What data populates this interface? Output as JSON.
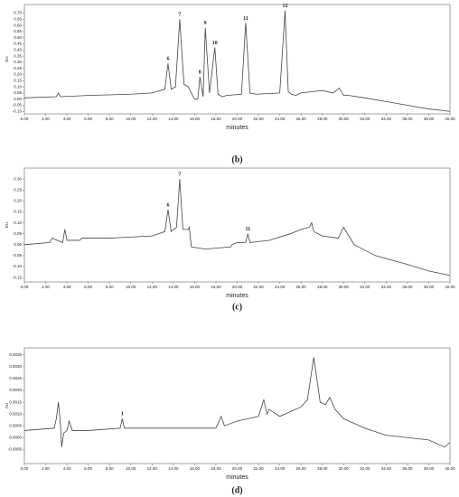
{
  "chart_data": [
    {
      "type": "line",
      "caption": "(b)",
      "xlabel": "minutes",
      "ylabel": "EU",
      "color": "#444444",
      "x": [
        0,
        3,
        3.2,
        3.4,
        6,
        10,
        12,
        13.2,
        13.5,
        13.8,
        14.2,
        14.6,
        15.0,
        15.4,
        15.8,
        16.0,
        16.3,
        16.5,
        16.8,
        17.0,
        17.4,
        17.9,
        18.2,
        18.6,
        19,
        20.4,
        20.8,
        21.2,
        21.8,
        24,
        24.5,
        24.8,
        25.1,
        25.5,
        26,
        27,
        28,
        29,
        29.6,
        30,
        30.5,
        32,
        34,
        36,
        38,
        40
      ],
      "values": [
        0.01,
        0.02,
        0.05,
        0.02,
        0.03,
        0.04,
        0.05,
        0.08,
        0.29,
        0.08,
        0.1,
        0.65,
        0.12,
        0.1,
        0.03,
        0.0,
        0.0,
        0.18,
        0.02,
        0.58,
        0.05,
        0.42,
        0.04,
        0.02,
        0.03,
        0.04,
        0.62,
        0.05,
        0.04,
        0.05,
        0.72,
        0.06,
        0.04,
        0.03,
        0.05,
        0.06,
        0.07,
        0.05,
        0.09,
        0.03,
        0.03,
        0.01,
        -0.02,
        -0.05,
        -0.08,
        -0.1
      ],
      "annotations": [
        {
          "text": "6",
          "x": 13.5,
          "y": 0.29
        },
        {
          "text": "7",
          "x": 14.6,
          "y": 0.65
        },
        {
          "text": "8",
          "x": 16.5,
          "y": 0.18
        },
        {
          "text": "9",
          "x": 17.0,
          "y": 0.58
        },
        {
          "text": "10",
          "x": 17.9,
          "y": 0.42
        },
        {
          "text": "11",
          "x": 20.8,
          "y": 0.62
        },
        {
          "text": "12",
          "x": 24.5,
          "y": 0.72
        }
      ],
      "xlim": [
        0,
        40
      ],
      "xticks": [
        {
          "value": 0,
          "label": "0.00"
        },
        {
          "value": 2,
          "label": "2.00"
        },
        {
          "value": 4,
          "label": "4.00"
        },
        {
          "value": 6,
          "label": "6.00"
        },
        {
          "value": 8,
          "label": "8.00"
        },
        {
          "value": 10,
          "label": "10.00"
        },
        {
          "value": 12,
          "label": "12.00"
        },
        {
          "value": 14,
          "label": "14.00"
        },
        {
          "value": 16,
          "label": "16.00"
        },
        {
          "value": 18,
          "label": "18.00"
        },
        {
          "value": 20,
          "label": "20.00"
        },
        {
          "value": 22,
          "label": "22.00"
        },
        {
          "value": 24,
          "label": "24.00"
        },
        {
          "value": 26,
          "label": "26.00"
        },
        {
          "value": 28,
          "label": "28.00"
        },
        {
          "value": 30,
          "label": "30.00"
        },
        {
          "value": 32,
          "label": "32.00"
        },
        {
          "value": 34,
          "label": "34.00"
        },
        {
          "value": 36,
          "label": "36.00"
        },
        {
          "value": 38,
          "label": "38.00"
        },
        {
          "value": 40,
          "label": "40.00"
        }
      ],
      "ylim": [
        -0.12,
        0.77
      ],
      "yticks": [
        {
          "value": 0.7,
          "label": "0.70"
        },
        {
          "value": 0.65,
          "label": "0.65"
        },
        {
          "value": 0.6,
          "label": "0.60"
        },
        {
          "value": 0.55,
          "label": "0.55"
        },
        {
          "value": 0.5,
          "label": "0.50"
        },
        {
          "value": 0.45,
          "label": "0.45"
        },
        {
          "value": 0.4,
          "label": "0.40"
        },
        {
          "value": 0.35,
          "label": "0.35"
        },
        {
          "value": 0.3,
          "label": "0.30"
        },
        {
          "value": 0.25,
          "label": "0.25"
        },
        {
          "value": 0.2,
          "label": "0.20"
        },
        {
          "value": 0.15,
          "label": "0.15"
        },
        {
          "value": 0.1,
          "label": "0.10"
        },
        {
          "value": 0.05,
          "label": "0.05"
        },
        {
          "value": 0,
          "label": "0.00"
        },
        {
          "value": -0.05,
          "label": "-0.05"
        },
        {
          "value": -0.1,
          "label": "-0.10"
        }
      ]
    },
    {
      "type": "line",
      "caption": "(c)",
      "xlabel": "minutes",
      "ylabel": "EU",
      "color": "#444444",
      "x": [
        0,
        2.4,
        2.6,
        3.6,
        3.8,
        4.0,
        5.2,
        5.4,
        8,
        12,
        13.2,
        13.5,
        13.8,
        14.3,
        14.6,
        14.9,
        15.4,
        15.5,
        15.6,
        15.7,
        17,
        19.4,
        19.5,
        20,
        20.8,
        21,
        21.2,
        23,
        25,
        26,
        26.8,
        27,
        27.2,
        28,
        29.5,
        30,
        30.5,
        31,
        33,
        36,
        38,
        40
      ],
      "values": [
        0.0,
        0.01,
        0.03,
        0.01,
        0.07,
        0.02,
        0.02,
        0.03,
        0.03,
        0.04,
        0.06,
        0.16,
        0.06,
        0.08,
        0.3,
        0.07,
        0.07,
        0.08,
        0.03,
        -0.01,
        -0.02,
        -0.01,
        0.0,
        0.01,
        0.01,
        0.05,
        0.01,
        0.02,
        0.05,
        0.07,
        0.08,
        0.1,
        0.06,
        0.04,
        0.03,
        0.08,
        0.04,
        0.0,
        -0.05,
        -0.09,
        -0.12,
        -0.14
      ],
      "annotations": [
        {
          "text": "6",
          "x": 13.5,
          "y": 0.16
        },
        {
          "text": "7",
          "x": 14.6,
          "y": 0.3
        },
        {
          "text": "11",
          "x": 21,
          "y": 0.05
        }
      ],
      "xlim": [
        0,
        40
      ],
      "xticks": [
        {
          "value": 0,
          "label": "0.00"
        },
        {
          "value": 2,
          "label": "2.00"
        },
        {
          "value": 4,
          "label": "4.00"
        },
        {
          "value": 6,
          "label": "6.00"
        },
        {
          "value": 8,
          "label": "8.00"
        },
        {
          "value": 10,
          "label": "10.00"
        },
        {
          "value": 12,
          "label": "12.00"
        },
        {
          "value": 14,
          "label": "14.00"
        },
        {
          "value": 16,
          "label": "16.00"
        },
        {
          "value": 18,
          "label": "18.00"
        },
        {
          "value": 20,
          "label": "20.00"
        },
        {
          "value": 22,
          "label": "22.00"
        },
        {
          "value": 24,
          "label": "24.00"
        },
        {
          "value": 26,
          "label": "26.00"
        },
        {
          "value": 28,
          "label": "28.00"
        },
        {
          "value": 30,
          "label": "30.00"
        },
        {
          "value": 32,
          "label": "32.00"
        },
        {
          "value": 34,
          "label": "34.00"
        },
        {
          "value": 36,
          "label": "36.00"
        },
        {
          "value": 38,
          "label": "38.00"
        },
        {
          "value": 40,
          "label": "40.00"
        }
      ],
      "ylim": [
        -0.17,
        0.35
      ],
      "yticks": [
        {
          "value": 0.3,
          "label": "0.30"
        },
        {
          "value": 0.25,
          "label": "0.25"
        },
        {
          "value": 0.2,
          "label": "0.20"
        },
        {
          "value": 0.15,
          "label": "0.15"
        },
        {
          "value": 0.1,
          "label": "0.10"
        },
        {
          "value": 0.05,
          "label": "0.05"
        },
        {
          "value": 0,
          "label": "0.00"
        },
        {
          "value": -0.05,
          "label": "-0.05"
        },
        {
          "value": -0.1,
          "label": "-0.10"
        },
        {
          "value": -0.15,
          "label": "-0.15"
        }
      ]
    },
    {
      "type": "line",
      "caption": "(d)",
      "xlabel": "minutes",
      "ylabel": "AU",
      "color": "#444444",
      "x": [
        0,
        2.8,
        3.0,
        3.2,
        3.4,
        3.5,
        3.7,
        4.0,
        4.2,
        4.5,
        6,
        9,
        9.2,
        9.4,
        12,
        18,
        18.5,
        18.8,
        20,
        21,
        22,
        22.5,
        22.8,
        23,
        24,
        25,
        26,
        26.6,
        27.2,
        27.8,
        28.3,
        28.7,
        29.2,
        30,
        32,
        34,
        36,
        38,
        39.5,
        40
      ],
      "values": [
        0.0003,
        0.0004,
        0.0008,
        0.0015,
        0.0005,
        -0.0004,
        0.0002,
        0.0003,
        0.0007,
        0.0003,
        0.0003,
        0.0004,
        0.0008,
        0.0004,
        0.0004,
        0.0004,
        0.0009,
        0.0005,
        0.0007,
        0.0008,
        0.0009,
        0.0016,
        0.001,
        0.0012,
        0.0009,
        0.0011,
        0.0013,
        0.0016,
        0.0034,
        0.0015,
        0.0014,
        0.0017,
        0.0012,
        0.0008,
        0.0004,
        0.0001,
        0,
        -0.0001,
        -0.0004,
        -0.0002
      ],
      "annotations": [
        {
          "text": "1",
          "x": 9.2,
          "y": 0.0008
        }
      ],
      "xlim": [
        0,
        40
      ],
      "xticks": [
        {
          "value": 0,
          "label": "0.00"
        },
        {
          "value": 2,
          "label": "2.00"
        },
        {
          "value": 4,
          "label": "4.00"
        },
        {
          "value": 6,
          "label": "6.00"
        },
        {
          "value": 8,
          "label": "8.00"
        },
        {
          "value": 10,
          "label": "10.00"
        },
        {
          "value": 12,
          "label": "12.00"
        },
        {
          "value": 14,
          "label": "14.00"
        },
        {
          "value": 16,
          "label": "16.00"
        },
        {
          "value": 18,
          "label": "18.00"
        },
        {
          "value": 20,
          "label": "20.00"
        },
        {
          "value": 22,
          "label": "22.00"
        },
        {
          "value": 24,
          "label": "24.00"
        },
        {
          "value": 26,
          "label": "26.00"
        },
        {
          "value": 28,
          "label": "28.00"
        },
        {
          "value": 30,
          "label": "30.00"
        },
        {
          "value": 32,
          "label": "32.00"
        },
        {
          "value": 34,
          "label": "34.00"
        },
        {
          "value": 36,
          "label": "36.00"
        },
        {
          "value": 38,
          "label": "38.00"
        },
        {
          "value": 40,
          "label": "40.00"
        }
      ],
      "ylim": [
        -0.0011,
        0.0038
      ],
      "yticks": [
        {
          "value": 0.0035,
          "label": "0.0035"
        },
        {
          "value": 0.003,
          "label": "0.0030"
        },
        {
          "value": 0.0025,
          "label": "0.0025"
        },
        {
          "value": 0.002,
          "label": "0.0020"
        },
        {
          "value": 0.0015,
          "label": "0.0015"
        },
        {
          "value": 0.001,
          "label": "0.0010"
        },
        {
          "value": 0.0005,
          "label": "0.0005"
        },
        {
          "value": 0,
          "label": "0.0000"
        },
        {
          "value": -0.0005,
          "label": "-0.0005"
        }
      ]
    }
  ]
}
